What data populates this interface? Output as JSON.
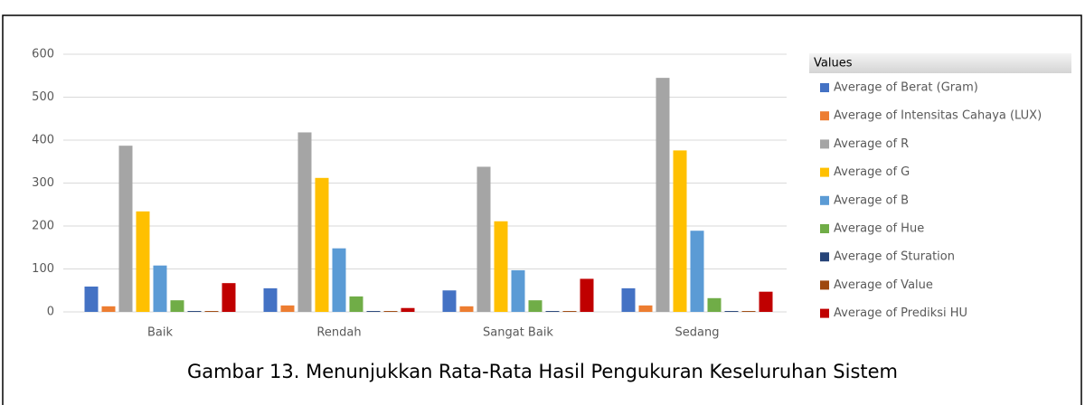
{
  "chart_data": {
    "type": "bar",
    "caption": "Gambar 13. Menunjukkan Rata-Rata Hasil Pengukuran Keseluruhan Sistem",
    "legend_title": "Values",
    "legend": "right",
    "grid": true,
    "categories": [
      "Baik",
      "Rendah",
      "Sangat Baik",
      "Sedang"
    ],
    "series": [
      {
        "name": "Average of Berat (Gram)",
        "color": "#4472c4",
        "values": [
          59,
          55,
          50,
          55
        ]
      },
      {
        "name": "Average of Intensitas Cahaya (LUX)",
        "color": "#ed7d31",
        "values": [
          13,
          15,
          13,
          15
        ]
      },
      {
        "name": "Average of R",
        "color": "#a5a5a5",
        "values": [
          387,
          418,
          338,
          545
        ]
      },
      {
        "name": "Average of G",
        "color": "#ffc000",
        "values": [
          234,
          312,
          211,
          376
        ]
      },
      {
        "name": "Average of B",
        "color": "#5b9bd5",
        "values": [
          108,
          148,
          97,
          189
        ]
      },
      {
        "name": "Average of Hue",
        "color": "#70ad47",
        "values": [
          27,
          36,
          27,
          32
        ]
      },
      {
        "name": "Average of Sturation",
        "color": "#264478",
        "values": [
          2,
          2,
          2,
          2
        ]
      },
      {
        "name": "Average of Value",
        "color": "#9e480e",
        "values": [
          2,
          2,
          2,
          2
        ]
      },
      {
        "name": "Average of Prediksi HU",
        "color": "#c00000",
        "values": [
          67,
          9,
          77,
          47
        ]
      }
    ],
    "ylim": [
      0,
      600
    ],
    "yticks": [
      0,
      100,
      200,
      300,
      400,
      500,
      600
    ]
  }
}
